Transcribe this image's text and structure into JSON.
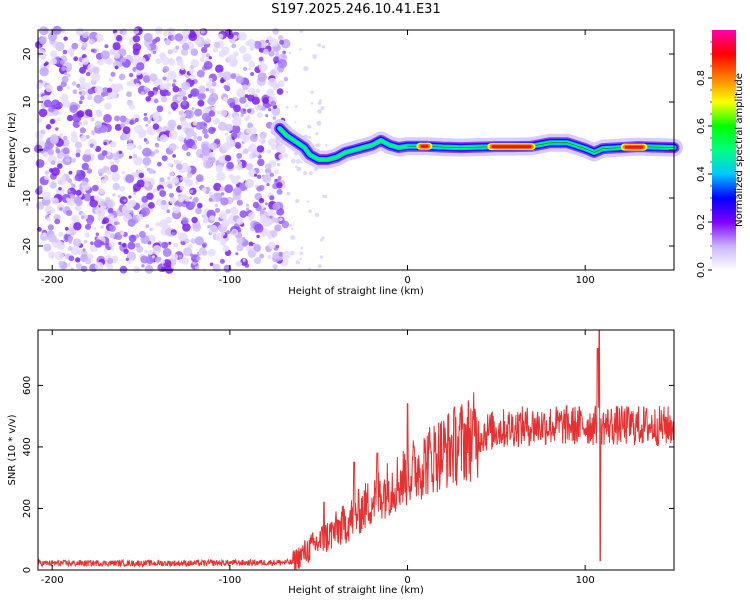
{
  "title": "S197.2025.246.10.41.E31",
  "chart_data": [
    {
      "id": "spectrogram",
      "type": "heatmap",
      "xlabel": "Height of straight line (km)",
      "ylabel": "Frequency (Hz)",
      "xlim": [
        -208,
        150
      ],
      "ylim": [
        -25,
        25
      ],
      "xticks": [
        -200,
        -100,
        0,
        100
      ],
      "xtick_labels": [
        "-200",
        "-100",
        "0",
        "100"
      ],
      "yticks": [
        -20,
        -10,
        0,
        10,
        20
      ],
      "ytick_labels": [
        "-20",
        "-10",
        "0",
        "10",
        "20"
      ],
      "noise_region_x": [
        -208,
        -68
      ],
      "tone_track": [
        {
          "x": -72,
          "f": 4.5
        },
        {
          "x": -68,
          "f": 3.0
        },
        {
          "x": -62,
          "f": 1.5
        },
        {
          "x": -58,
          "f": 0.5
        },
        {
          "x": -55,
          "f": -1.0
        },
        {
          "x": -50,
          "f": -2.0
        },
        {
          "x": -45,
          "f": -2.0
        },
        {
          "x": -40,
          "f": -1.5
        },
        {
          "x": -35,
          "f": -0.5
        },
        {
          "x": -30,
          "f": 0.0
        },
        {
          "x": -25,
          "f": 0.5
        },
        {
          "x": -20,
          "f": 1.0
        },
        {
          "x": -15,
          "f": 2.0
        },
        {
          "x": -10,
          "f": 1.0
        },
        {
          "x": -5,
          "f": 0.5
        },
        {
          "x": 0,
          "f": 0.8
        },
        {
          "x": 10,
          "f": 0.8
        },
        {
          "x": 20,
          "f": 0.6
        },
        {
          "x": 30,
          "f": 0.5
        },
        {
          "x": 40,
          "f": 0.6
        },
        {
          "x": 50,
          "f": 0.7
        },
        {
          "x": 60,
          "f": 0.7
        },
        {
          "x": 70,
          "f": 0.8
        },
        {
          "x": 80,
          "f": 1.5
        },
        {
          "x": 90,
          "f": 1.5
        },
        {
          "x": 100,
          "f": 0.3
        },
        {
          "x": 105,
          "f": -0.5
        },
        {
          "x": 110,
          "f": 0.3
        },
        {
          "x": 120,
          "f": 0.5
        },
        {
          "x": 130,
          "f": 0.7
        },
        {
          "x": 140,
          "f": 0.6
        },
        {
          "x": 150,
          "f": 0.5
        }
      ],
      "strong_segments": [
        {
          "x0": 45,
          "x1": 72,
          "f": 0.7
        },
        {
          "x0": 120,
          "x1": 135,
          "f": 0.6
        },
        {
          "x0": 5,
          "x1": 14,
          "f": 0.8
        }
      ]
    },
    {
      "id": "colorbar",
      "type": "heatmap",
      "label": "Normalized spectral amplitude",
      "range": [
        0,
        1
      ],
      "ticks": [
        0.0,
        0.2,
        0.4,
        0.6,
        0.8
      ],
      "tick_labels": [
        "0.0",
        "0.2",
        "0.4",
        "0.6",
        "0.8"
      ],
      "colors": [
        "#ffffff",
        "#c9b2ff",
        "#7f00ff",
        "#0000ff",
        "#00c8ff",
        "#00ff80",
        "#00ff00",
        "#ffff00",
        "#ff8000",
        "#ff0000",
        "#ff00aa"
      ]
    },
    {
      "id": "snr",
      "type": "line",
      "xlabel": "Height of straight line (km)",
      "ylabel": "SNR (10 * v/v)",
      "xlim": [
        -208,
        150
      ],
      "ylim": [
        0,
        780
      ],
      "xticks": [
        -200,
        -100,
        0,
        100
      ],
      "xtick_labels": [
        "-200",
        "-100",
        "0",
        "100"
      ],
      "yticks": [
        0,
        200,
        400,
        600
      ],
      "ytick_labels": [
        "0",
        "200",
        "400",
        "600"
      ],
      "series": [
        {
          "name": "SNR",
          "color": "#e83030",
          "envelope": [
            {
              "x": -208,
              "y": 22
            },
            {
              "x": -120,
              "y": 22
            },
            {
              "x": -65,
              "y": 25
            },
            {
              "x": -55,
              "y": 70
            },
            {
              "x": -45,
              "y": 110
            },
            {
              "x": -35,
              "y": 150
            },
            {
              "x": -25,
              "y": 200
            },
            {
              "x": -15,
              "y": 250
            },
            {
              "x": -5,
              "y": 290
            },
            {
              "x": 5,
              "y": 330
            },
            {
              "x": 15,
              "y": 370
            },
            {
              "x": 25,
              "y": 400
            },
            {
              "x": 35,
              "y": 430
            },
            {
              "x": 45,
              "y": 450
            },
            {
              "x": 60,
              "y": 465
            },
            {
              "x": 80,
              "y": 470
            },
            {
              "x": 100,
              "y": 470
            },
            {
              "x": 150,
              "y": 468
            }
          ],
          "spikes": [
            {
              "x": 0,
              "y": 540
            },
            {
              "x": -47,
              "y": 220
            },
            {
              "x": -30,
              "y": 350
            },
            {
              "x": -17,
              "y": 380
            },
            {
              "x": 107,
              "y": 720
            },
            {
              "x": 108,
              "y": 780
            },
            {
              "x": 108.5,
              "y": 30
            }
          ]
        }
      ]
    }
  ]
}
